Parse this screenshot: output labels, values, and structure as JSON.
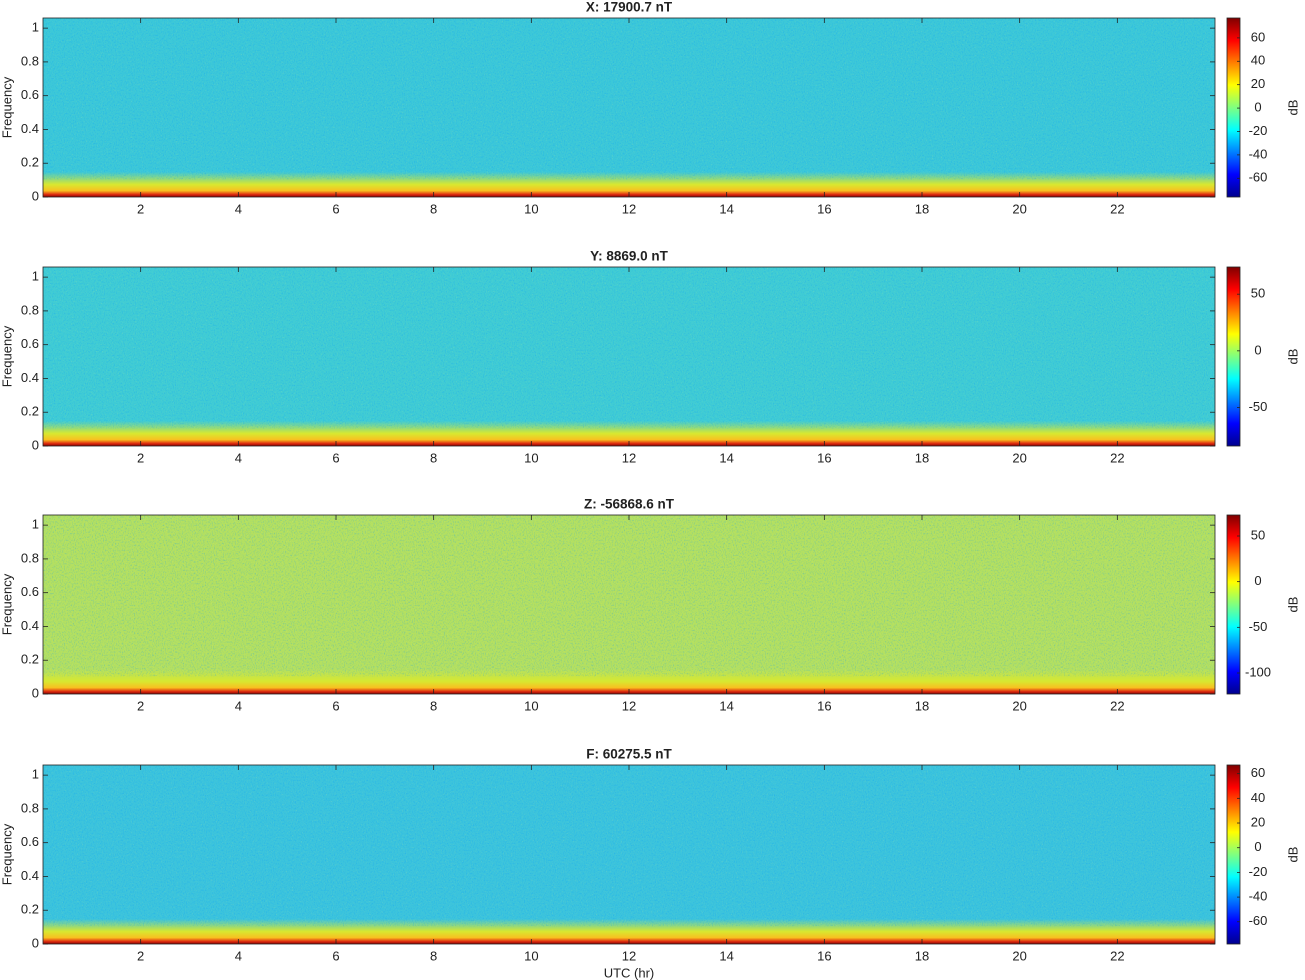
{
  "chart_data": [
    {
      "type": "spectrogram",
      "title": "X: 17900.7 nT",
      "ylabel": "Frequency",
      "colormap": "jet",
      "xlim": [
        0,
        24
      ],
      "xticks": [
        2,
        4,
        6,
        8,
        10,
        12,
        14,
        16,
        18,
        20,
        22
      ],
      "ylim": [
        0,
        1.06
      ],
      "yticks": [
        0,
        0.2,
        0.4,
        0.6,
        0.8,
        1
      ],
      "colorbar": {
        "label": "dB",
        "clim": [
          -76,
          77
        ],
        "ticks": [
          -60,
          -40,
          -20,
          0,
          20,
          40,
          60
        ]
      }
    },
    {
      "type": "spectrogram",
      "title": "Y: 8869.0 nT",
      "ylabel": "Frequency",
      "colormap": "jet",
      "xlim": [
        0,
        24
      ],
      "xticks": [
        2,
        4,
        6,
        8,
        10,
        12,
        14,
        16,
        18,
        20,
        22
      ],
      "ylim": [
        0,
        1.06
      ],
      "yticks": [
        0,
        0.2,
        0.4,
        0.6,
        0.8,
        1
      ],
      "colorbar": {
        "label": "dB",
        "clim": [
          -84,
          74
        ],
        "ticks": [
          -50,
          0,
          50
        ]
      }
    },
    {
      "type": "spectrogram",
      "title": "Z: -56868.6 nT",
      "ylabel": "Frequency",
      "colormap": "jet",
      "xlim": [
        0,
        24
      ],
      "xticks": [
        2,
        4,
        6,
        8,
        10,
        12,
        14,
        16,
        18,
        20,
        22
      ],
      "ylim": [
        0,
        1.06
      ],
      "yticks": [
        0,
        0.2,
        0.4,
        0.6,
        0.8,
        1
      ],
      "colorbar": {
        "label": "dB",
        "clim": [
          -123,
          73
        ],
        "ticks": [
          -100,
          -50,
          0,
          50
        ]
      }
    },
    {
      "type": "spectrogram",
      "title": "F: 60275.5 nT",
      "ylabel": "Frequency",
      "xlabel": "UTC (hr)",
      "colormap": "jet",
      "xlim": [
        0,
        24
      ],
      "xticks": [
        2,
        4,
        6,
        8,
        10,
        12,
        14,
        16,
        18,
        20,
        22
      ],
      "ylim": [
        0,
        1.06
      ],
      "yticks": [
        0,
        0.2,
        0.4,
        0.6,
        0.8,
        1
      ],
      "colorbar": {
        "label": "dB",
        "clim": [
          -78,
          67
        ],
        "ticks": [
          -60,
          -40,
          -20,
          0,
          20,
          40,
          60
        ]
      }
    }
  ]
}
